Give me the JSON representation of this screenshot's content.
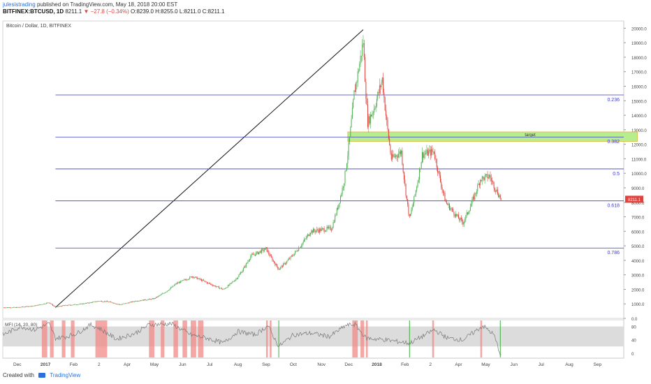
{
  "header": {
    "author": "julesistrading",
    "published_text": "published on TradingView.com, May 18, 2018 20:00 EST",
    "symbol": "BITFINEX:BTCUSD, 1D",
    "last_price": "8211.1",
    "change": "−27.8 (−0.34%)",
    "ohlc": "O:8239.0 H:8255.0 L:8211.0 C:8211.1"
  },
  "footer": {
    "created_with": "Created with",
    "brand": "TradingView"
  },
  "chart_data": {
    "type": "candlestick",
    "title": "Bitcoin / Dollar, 1D, BITFINEX",
    "colors": {
      "up": "#4caf50",
      "down": "#e0423d",
      "fib": "#3c3cc9",
      "mfi": "#777777",
      "mfi_band": "#dcdcdc",
      "target": "#b8ed8e",
      "price_tag": "#e0423d"
    },
    "y_ticks": [
      "20000.0",
      "19000.0",
      "18000.0",
      "17000.0",
      "16000.0",
      "15000.0",
      "14000.0",
      "13000.0",
      "12000.0",
      "11000.0",
      "10000.0",
      "9000.0",
      "8000.0",
      "7000.0",
      "6000.0",
      "5000.0",
      "4000.0",
      "3000.0",
      "2000.0",
      "1000.0",
      "0.0"
    ],
    "ylim": [
      0,
      20500
    ],
    "x_ticks": [
      "Dec",
      "2017",
      "Feb",
      "2",
      "Apr",
      "May",
      "Jun",
      "Jul",
      "Aug",
      "Sep",
      "Oct",
      "Nov",
      "Dec",
      "2018",
      "Feb",
      "2",
      "Apr",
      "May",
      "Jun",
      "Jul",
      "Aug",
      "Sep"
    ],
    "close_path": [
      [
        "2016-11-15",
        750
      ],
      [
        "2016-12-01",
        760
      ],
      [
        "2016-12-20",
        870
      ],
      [
        "2017-01-05",
        1100
      ],
      [
        "2017-01-12",
        780
      ],
      [
        "2017-01-20",
        880
      ],
      [
        "2017-02-10",
        1000
      ],
      [
        "2017-03-01",
        1200
      ],
      [
        "2017-03-12",
        1150
      ],
      [
        "2017-03-24",
        950
      ],
      [
        "2017-04-10",
        1200
      ],
      [
        "2017-04-30",
        1350
      ],
      [
        "2017-05-25",
        2400
      ],
      [
        "2017-06-12",
        2900
      ],
      [
        "2017-06-25",
        2550
      ],
      [
        "2017-07-16",
        2000
      ],
      [
        "2017-07-31",
        2800
      ],
      [
        "2017-08-15",
        4300
      ],
      [
        "2017-09-01",
        4800
      ],
      [
        "2017-09-15",
        3400
      ],
      [
        "2017-10-01",
        4400
      ],
      [
        "2017-10-20",
        6000
      ],
      [
        "2017-11-12",
        6200
      ],
      [
        "2017-11-26",
        9500
      ],
      [
        "2017-12-07",
        15500
      ],
      [
        "2017-12-17",
        19100
      ],
      [
        "2017-12-22",
        13500
      ],
      [
        "2017-12-29",
        14500
      ],
      [
        "2018-01-07",
        16500
      ],
      [
        "2018-01-17",
        11000
      ],
      [
        "2018-01-28",
        11500
      ],
      [
        "2018-02-06",
        6900
      ],
      [
        "2018-02-20",
        11300
      ],
      [
        "2018-03-05",
        11500
      ],
      [
        "2018-03-18",
        8000
      ],
      [
        "2018-04-01",
        6900
      ],
      [
        "2018-04-06",
        6600
      ],
      [
        "2018-04-25",
        9600
      ],
      [
        "2018-05-05",
        9800
      ],
      [
        "2018-05-18",
        8211
      ]
    ],
    "fib_levels": [
      {
        "label": "0.236",
        "price": 15400
      },
      {
        "label": "0.382",
        "price": 12500
      },
      {
        "label": "0.5",
        "price": 10300
      },
      {
        "label": "0.618",
        "price": 8100
      },
      {
        "label": "0.786",
        "price": 4850
      }
    ],
    "trendline": {
      "from": [
        "2017-01-12",
        750
      ],
      "to": [
        "2017-12-17",
        19900
      ]
    },
    "target": {
      "label": "target",
      "low": 12200,
      "high": 12850,
      "from": "2017-11-30",
      "to": "2018-10-15"
    },
    "last_price_tag": "8211.1",
    "mfi": {
      "label": "MFI (14, 20, 80)",
      "ticks": [
        "80",
        "40",
        "0"
      ],
      "band": [
        20,
        80
      ],
      "ylim": [
        -15,
        100
      ],
      "values": [
        [
          "2016-11-15",
          55
        ],
        [
          "2016-12-05",
          80
        ],
        [
          "2016-12-20",
          70
        ],
        [
          "2017-01-05",
          88
        ],
        [
          "2017-01-12",
          45
        ],
        [
          "2017-01-25",
          50
        ],
        [
          "2017-02-05",
          60
        ],
        [
          "2017-02-20",
          85
        ],
        [
          "2017-03-01",
          75
        ],
        [
          "2017-03-20",
          42
        ],
        [
          "2017-04-10",
          60
        ],
        [
          "2017-04-25",
          85
        ],
        [
          "2017-05-20",
          88
        ],
        [
          "2017-06-10",
          55
        ],
        [
          "2017-06-28",
          45
        ],
        [
          "2017-07-16",
          30
        ],
        [
          "2017-08-01",
          65
        ],
        [
          "2017-08-20",
          55
        ],
        [
          "2017-09-03",
          82
        ],
        [
          "2017-09-15",
          20
        ],
        [
          "2017-10-01",
          55
        ],
        [
          "2017-10-20",
          60
        ],
        [
          "2017-11-10",
          50
        ],
        [
          "2017-11-28",
          83
        ],
        [
          "2017-12-08",
          86
        ],
        [
          "2017-12-20",
          45
        ],
        [
          "2018-01-10",
          40
        ],
        [
          "2018-02-06",
          30
        ],
        [
          "2018-02-20",
          50
        ],
        [
          "2018-03-05",
          70
        ],
        [
          "2018-03-20",
          45
        ],
        [
          "2018-04-06",
          40
        ],
        [
          "2018-04-28",
          82
        ],
        [
          "2018-05-10",
          55
        ],
        [
          "2018-05-18",
          -10
        ]
      ],
      "overbought_spans": [
        [
          "2016-12-28",
          "2017-01-03"
        ],
        [
          "2017-01-06",
          "2017-01-10"
        ],
        [
          "2017-01-19",
          "2017-01-23"
        ],
        [
          "2017-01-29",
          "2017-02-02"
        ],
        [
          "2017-02-25",
          "2017-03-10"
        ],
        [
          "2017-04-25",
          "2017-05-01"
        ],
        [
          "2017-05-08",
          "2017-05-12"
        ],
        [
          "2017-05-22",
          "2017-05-27"
        ],
        [
          "2017-06-01",
          "2017-06-06"
        ],
        [
          "2017-06-10",
          "2017-06-16"
        ],
        [
          "2017-06-18",
          "2017-06-24"
        ],
        [
          "2017-09-01",
          "2017-09-03"
        ],
        [
          "2017-09-05",
          "2017-09-07"
        ],
        [
          "2017-12-05",
          "2017-12-11"
        ],
        [
          "2017-12-14",
          "2017-12-18"
        ],
        [
          "2017-12-20",
          "2017-12-22"
        ],
        [
          "2018-03-03",
          "2018-03-05"
        ],
        [
          "2018-04-25",
          "2018-04-27"
        ]
      ],
      "oversold_marks": [
        "2017-09-15",
        "2018-02-06",
        "2018-05-17"
      ]
    }
  }
}
